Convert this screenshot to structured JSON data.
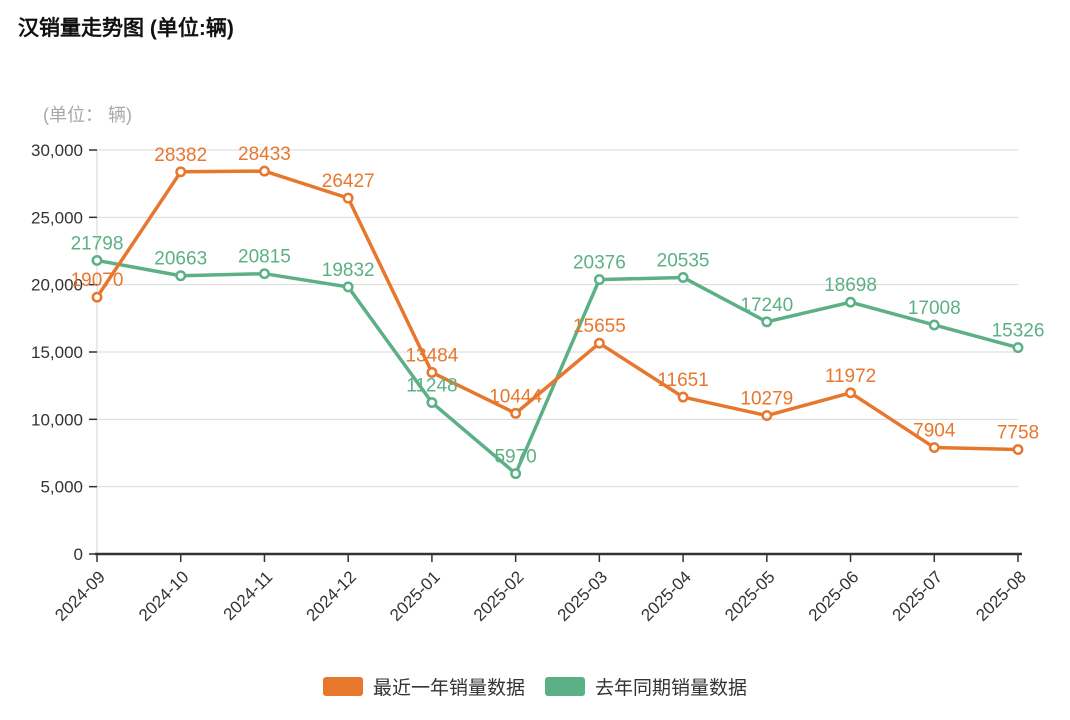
{
  "page": {
    "title": "汉销量走势图 (单位:辆)",
    "subtitle": "(单位： 辆)"
  },
  "chart_data": {
    "type": "line",
    "title": "汉销量走势图 (单位:辆)",
    "unit": "辆",
    "categories": [
      "2024-09",
      "2024-10",
      "2024-11",
      "2024-12",
      "2025-01",
      "2025-02",
      "2025-03",
      "2025-04",
      "2025-05",
      "2025-06",
      "2025-07",
      "2025-08"
    ],
    "series": [
      {
        "name": "最近一年销量数据",
        "color": "#e8772e",
        "values": [
          19070,
          28382,
          28433,
          26427,
          13484,
          10444,
          15655,
          11651,
          10279,
          11972,
          7904,
          7758
        ]
      },
      {
        "name": "去年同期销量数据",
        "color": "#5cb085",
        "values": [
          21798,
          20663,
          20815,
          19832,
          11248,
          5970,
          20376,
          20535,
          17240,
          18698,
          17008,
          15326
        ]
      }
    ],
    "yaxis": {
      "min": 0,
      "max": 30000,
      "tick_step": 5000,
      "tick_labels": [
        "0",
        "5,000",
        "10,000",
        "15,000",
        "20,000",
        "25,000",
        "30,000"
      ]
    },
    "xaxis": {
      "label_rotation_deg": -45
    },
    "grid": true,
    "legend_position": "bottom",
    "colors": {
      "axis_line": "#333333",
      "grid_line": "#d9d9d9",
      "axis_text": "#333333",
      "marker_fill": "#ffffff"
    }
  }
}
